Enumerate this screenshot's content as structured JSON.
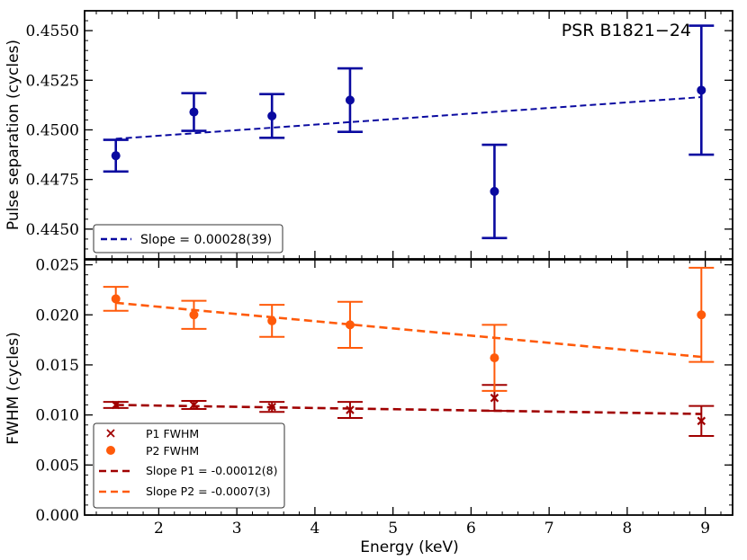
{
  "chart_data": [
    {
      "type": "scatter",
      "ylabel": "Pulse separation (cycles)",
      "annotation": "PSR B1821−24",
      "ylim": [
        0.4435,
        0.456
      ],
      "yticks": [
        0.445,
        0.4475,
        0.45,
        0.4525,
        0.455
      ],
      "ytick_labels": [
        "0.4450",
        "0.4475",
        "0.4500",
        "0.4525",
        "0.4550"
      ],
      "series": [
        {
          "name": "Pulse separation",
          "color": "#0a0aa0",
          "x": [
            1.45,
            2.45,
            3.45,
            4.45,
            6.3,
            8.95
          ],
          "y": [
            0.4487,
            0.4509,
            0.4507,
            0.4515,
            0.4469,
            0.452
          ],
          "yerr": [
            0.0008,
            0.00095,
            0.0011,
            0.0016,
            0.00235,
            0.00325
          ]
        }
      ],
      "fit": {
        "label": "Slope = 0.00028(39)",
        "color": "#0a0aa0",
        "x": [
          1.45,
          8.95
        ],
        "y": [
          0.44955,
          0.45165
        ]
      },
      "legend_position": "bottom-left"
    },
    {
      "type": "scatter",
      "ylabel": "FWHM (cycles)",
      "xlabel": "Energy (keV)",
      "xlim": [
        1.05,
        9.35
      ],
      "ylim": [
        0.0,
        0.0255
      ],
      "xticks": [
        2,
        3,
        4,
        5,
        6,
        7,
        8,
        9
      ],
      "xtick_labels": [
        "2",
        "3",
        "4",
        "5",
        "6",
        "7",
        "8",
        "9"
      ],
      "yticks": [
        0.0,
        0.005,
        0.01,
        0.015,
        0.02,
        0.025
      ],
      "ytick_labels": [
        "0.000",
        "0.005",
        "0.010",
        "0.015",
        "0.020",
        "0.025"
      ],
      "series": [
        {
          "name": "P1 FWHM",
          "color": "#a00000",
          "marker": "x",
          "x": [
            1.45,
            2.45,
            3.45,
            4.45,
            6.3,
            8.95
          ],
          "y": [
            0.011,
            0.011,
            0.0108,
            0.0105,
            0.0117,
            0.0094
          ],
          "yerr": [
            0.0003,
            0.0004,
            0.0005,
            0.0008,
            0.0013,
            0.0015
          ]
        },
        {
          "name": "P2 FWHM",
          "color": "#ff5a0a",
          "marker": "o",
          "x": [
            1.45,
            2.45,
            3.45,
            4.45,
            6.3,
            8.95
          ],
          "y": [
            0.0216,
            0.02,
            0.0194,
            0.019,
            0.0157,
            0.02
          ],
          "yerr": [
            0.0012,
            0.0014,
            0.0016,
            0.0023,
            0.0033,
            0.0047
          ]
        }
      ],
      "fits": [
        {
          "label": "Slope P1 = -0.00012(8)",
          "color": "#a00000",
          "x": [
            1.45,
            8.95
          ],
          "y": [
            0.011,
            0.0101
          ]
        },
        {
          "label": "Slope P2 = -0.0007(3)",
          "color": "#ff5a0a",
          "x": [
            1.45,
            8.95
          ],
          "y": [
            0.0212,
            0.0158
          ]
        }
      ],
      "legend_position": "bottom-left"
    }
  ]
}
